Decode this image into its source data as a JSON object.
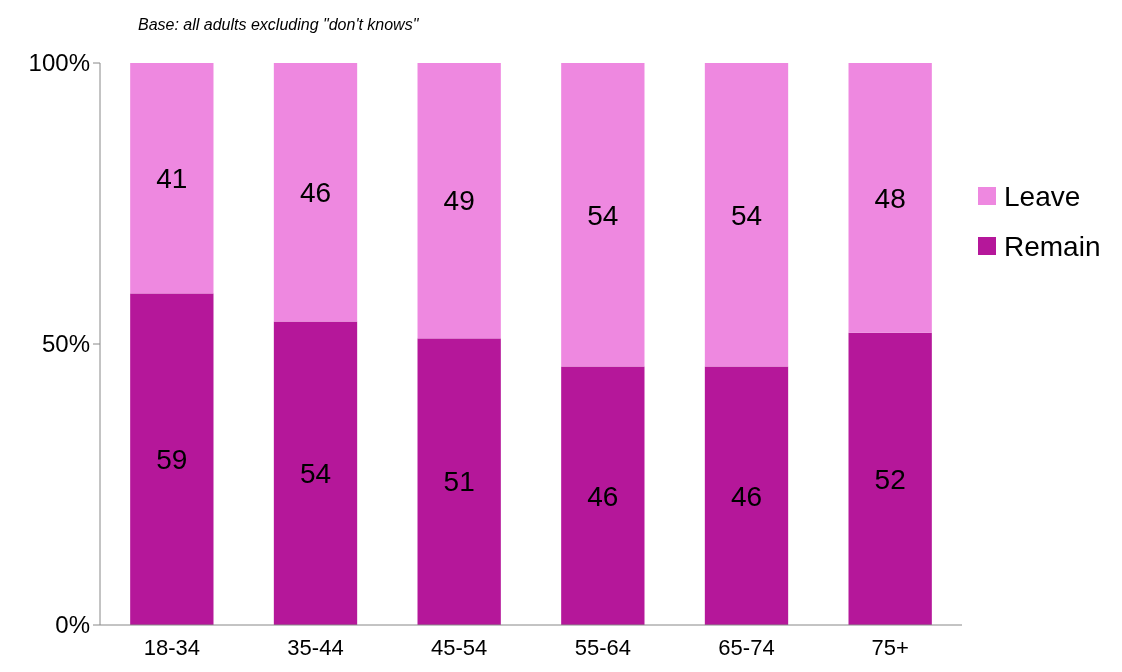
{
  "chart_data": {
    "type": "bar",
    "stacked": true,
    "subtitle": "Base: all adults excluding \"don't knows\"",
    "categories": [
      "18-34",
      "35-44",
      "45-54",
      "55-64",
      "65-74",
      "75+"
    ],
    "series": [
      {
        "name": "Remain",
        "color": "#b5179a",
        "values": [
          59,
          54,
          51,
          46,
          46,
          52
        ]
      },
      {
        "name": "Leave",
        "color": "#ee88e0",
        "values": [
          41,
          46,
          49,
          54,
          54,
          48
        ]
      }
    ],
    "ylim": [
      0,
      100
    ],
    "yticks": [
      {
        "value": 0,
        "label": "0%"
      },
      {
        "value": 50,
        "label": "50%"
      },
      {
        "value": 100,
        "label": "100%"
      }
    ],
    "data_labels": true,
    "legend": "right",
    "grid": false
  }
}
